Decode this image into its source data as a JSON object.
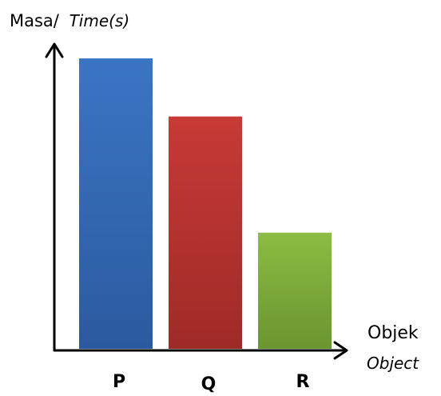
{
  "chart_data": {
    "type": "bar",
    "categories": [
      "P",
      "Q",
      "R"
    ],
    "values": [
      5.0,
      4.0,
      2.0
    ],
    "ylim": [
      0,
      5.5
    ],
    "ylabel": "Masa/",
    "ylabel_italic": "Time(s)",
    "xlabel": "Objek",
    "xlabel_italic": "Object",
    "grid": false,
    "colors": [
      "#3a75c4",
      "#c83a36",
      "#8cbc42"
    ],
    "colors_dark": [
      "#2c5aa0",
      "#9e2a27",
      "#6a9530"
    ]
  }
}
